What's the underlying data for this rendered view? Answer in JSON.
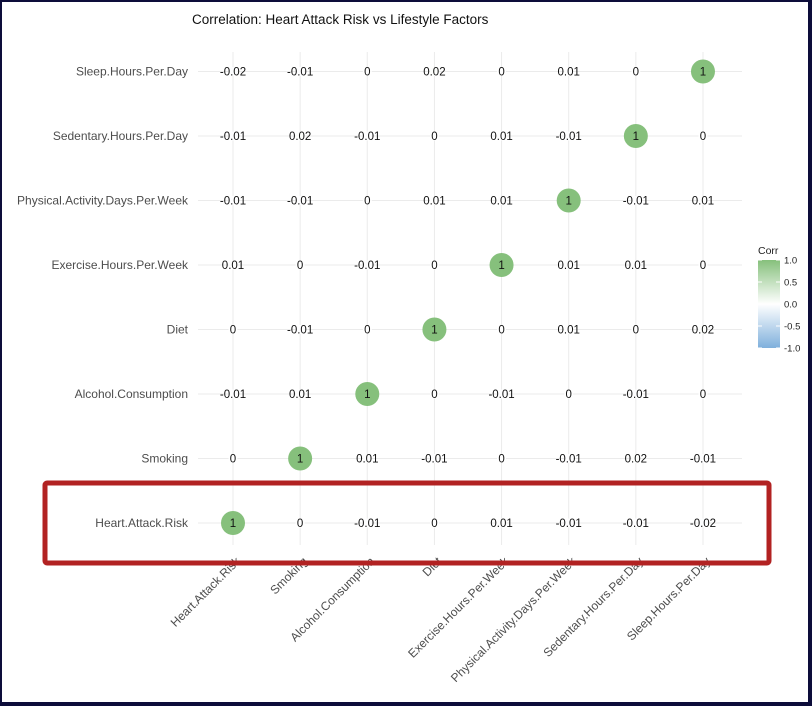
{
  "chart_data": {
    "type": "heatmap",
    "subtype": "correlation-circle",
    "title": "Correlation: Heart Attack Risk vs Lifestyle Factors",
    "variables": [
      "Heart.Attack.Risk",
      "Smoking",
      "Alcohol.Consumption",
      "Diet",
      "Exercise.Hours.Per.Week",
      "Physical.Activity.Days.Per.Week",
      "Sedentary.Hours.Per.Day",
      "Sleep.Hours.Per.Day"
    ],
    "matrix": [
      [
        1,
        0,
        -0.01,
        0,
        0.01,
        -0.01,
        -0.01,
        -0.02
      ],
      [
        0,
        1,
        0.01,
        -0.01,
        0,
        -0.01,
        0.02,
        -0.01
      ],
      [
        -0.01,
        0.01,
        1,
        0,
        -0.01,
        0,
        -0.01,
        0
      ],
      [
        0,
        -0.01,
        0,
        1,
        0,
        0.01,
        0,
        0.02
      ],
      [
        0.01,
        0,
        -0.01,
        0,
        1,
        0.01,
        0.01,
        0
      ],
      [
        -0.01,
        -0.01,
        0,
        0.01,
        0.01,
        1,
        -0.01,
        0.01
      ],
      [
        -0.01,
        0.02,
        -0.01,
        0,
        0.01,
        -0.01,
        1,
        0
      ],
      [
        -0.02,
        -0.01,
        0,
        0.02,
        0,
        0.01,
        0,
        1
      ]
    ],
    "legend": {
      "title": "Corr",
      "ticks": [
        1.0,
        0.5,
        0.0,
        -0.5,
        -1.0
      ],
      "tick_labels": [
        "1.0",
        "0.5",
        "0.0",
        "-0.5",
        "-1.0"
      ],
      "range": [
        -1,
        1
      ],
      "low_color": "#7fb0dc",
      "mid_color": "#ffffff",
      "high_color": "#86c07c",
      "position": "right"
    },
    "highlighted_row": "Heart.Attack.Risk",
    "highlight_color": "#b22222",
    "grid": true
  }
}
